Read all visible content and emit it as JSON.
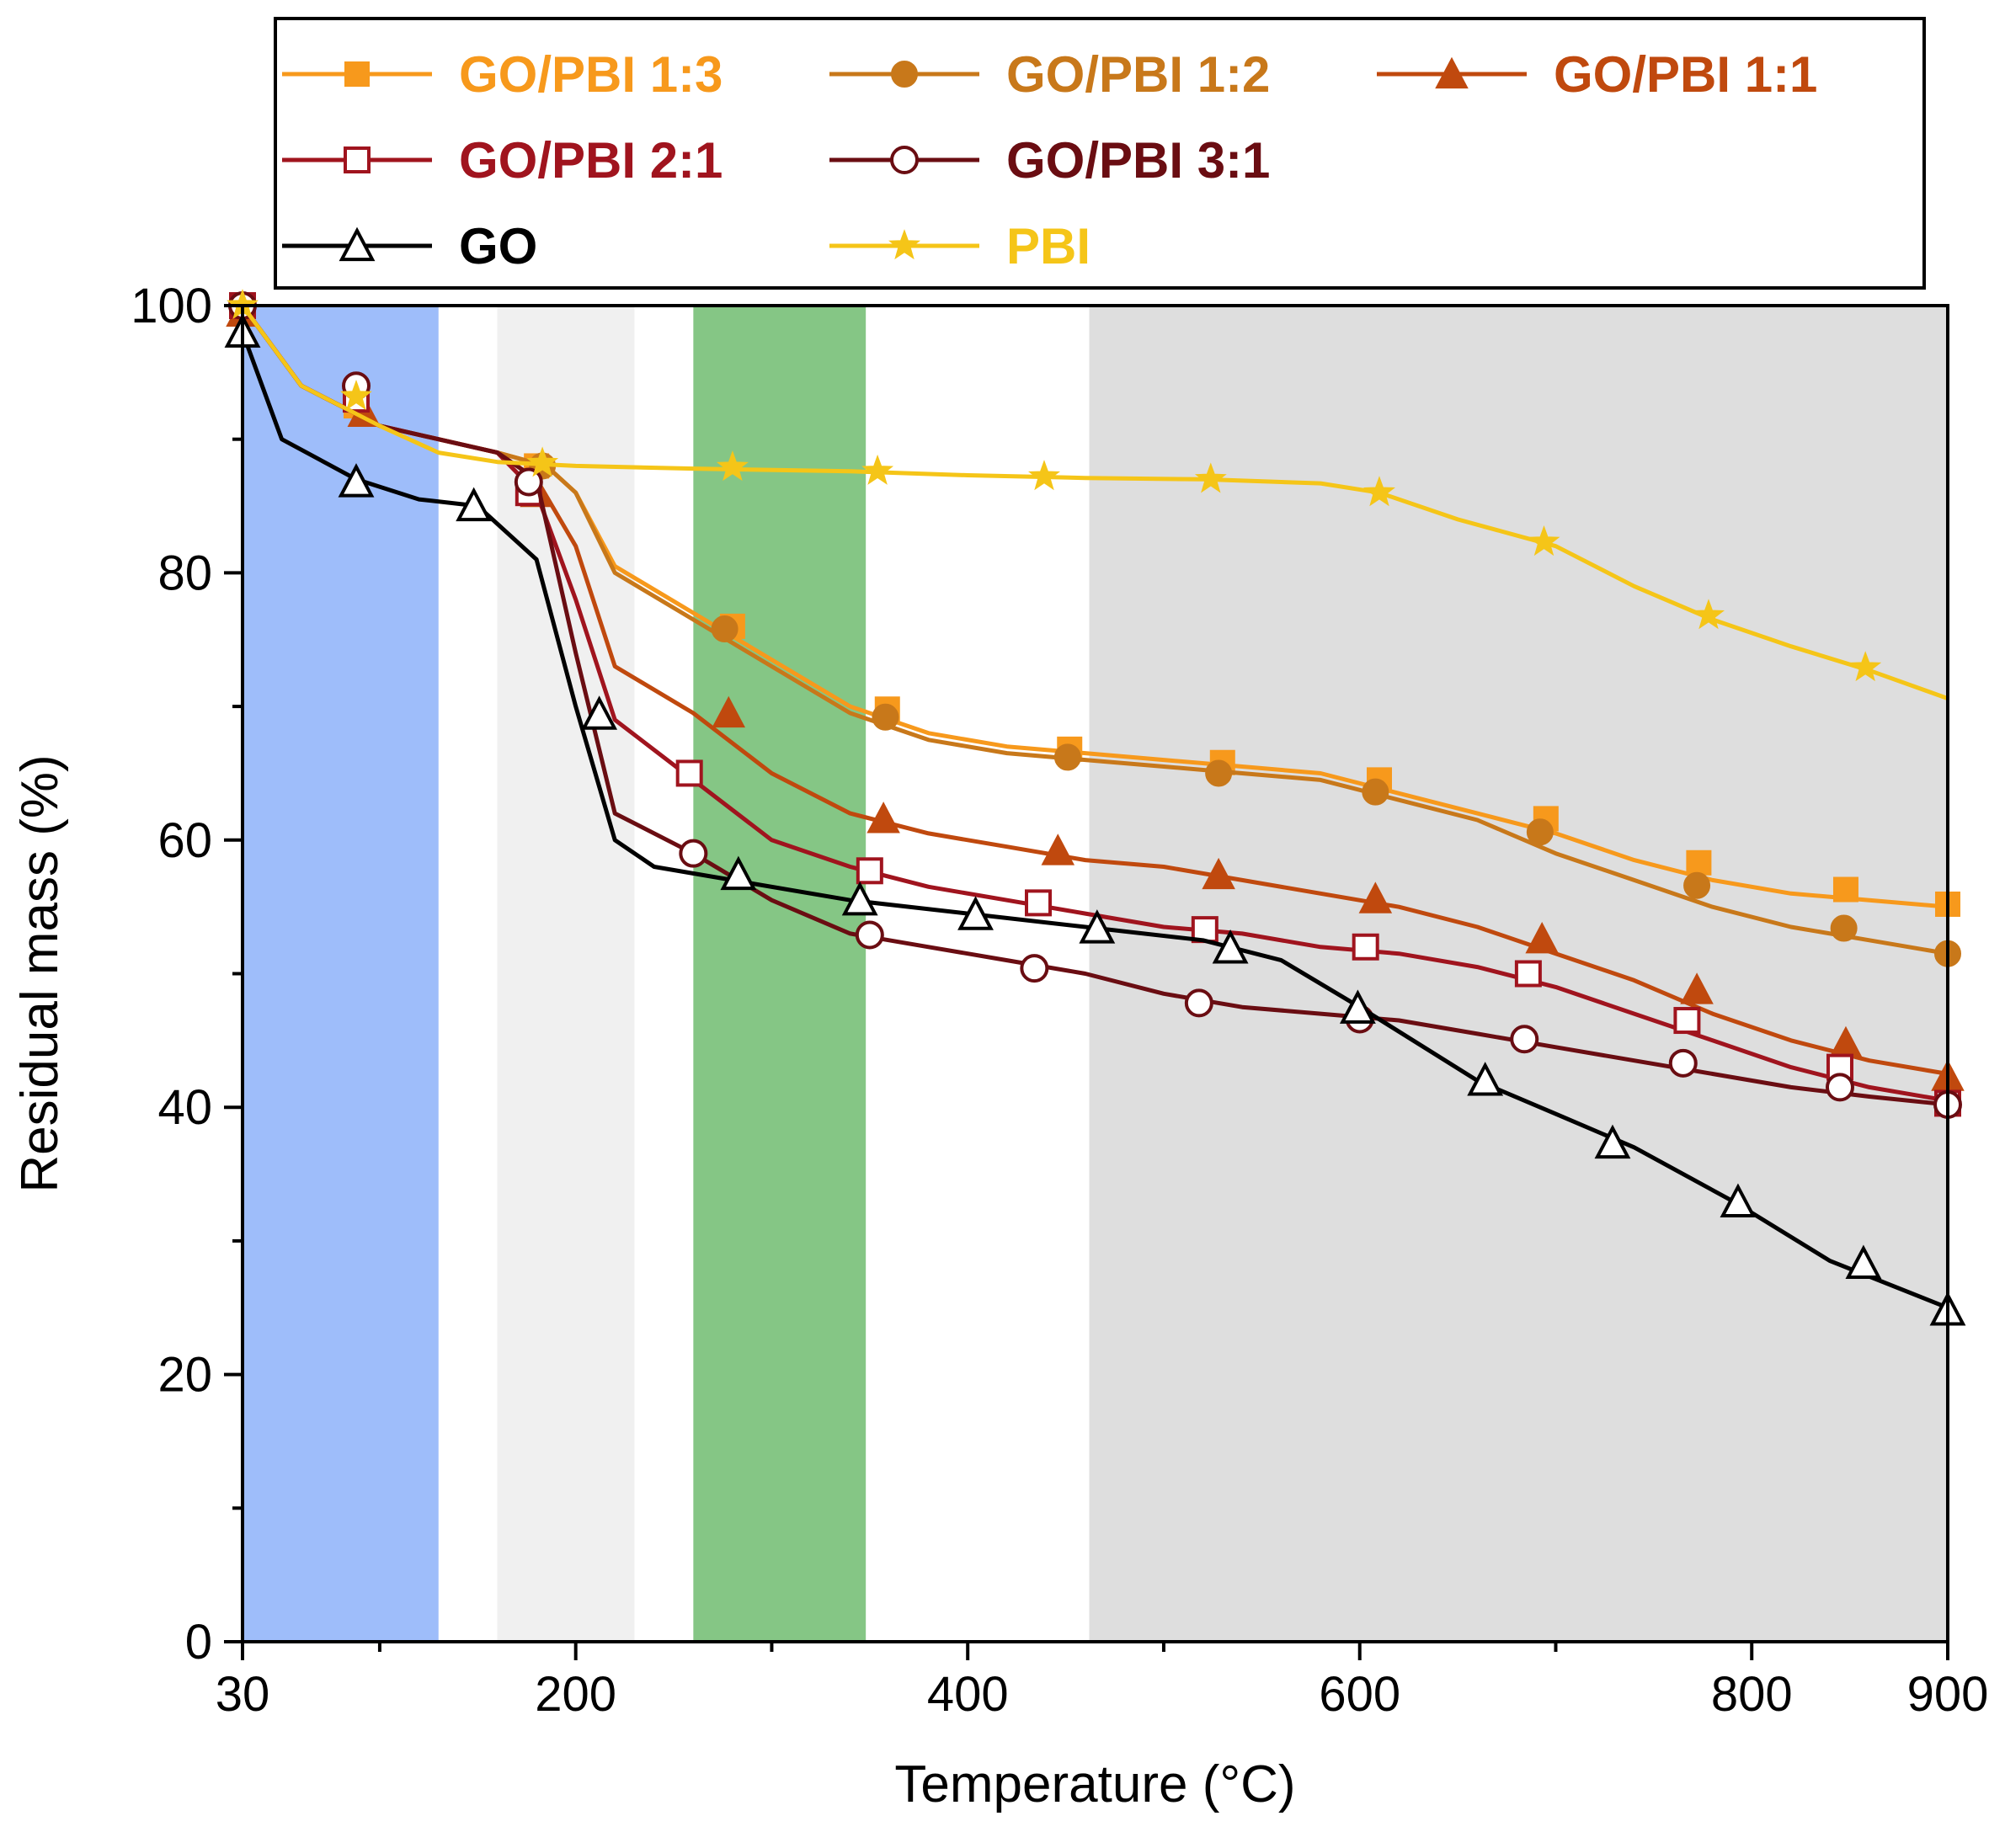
{
  "chart_data": {
    "type": "line",
    "xlabel": "Temperature (°C)",
    "ylabel": "Residual mass (%)",
    "xlim": [
      30,
      900
    ],
    "ylim": [
      0,
      100
    ],
    "x_ticks": [
      30,
      200,
      400,
      600,
      800,
      900
    ],
    "x_minor_ticks": [
      100,
      300,
      500,
      700
    ],
    "y_ticks": [
      0,
      20,
      40,
      60,
      80,
      100
    ],
    "y_minor_ticks": [
      10,
      30,
      50,
      70,
      90
    ],
    "legend_position": "top",
    "shaded_regions": [
      {
        "from": 30,
        "to": 130,
        "color": "#9ebdfa"
      },
      {
        "from": 160,
        "to": 230,
        "color": "#f0f0f0"
      },
      {
        "from": 260,
        "to": 348,
        "color": "#85c685"
      },
      {
        "from": 462,
        "to": 900,
        "color": "#dedede"
      }
    ],
    "series": [
      {
        "name": "GO/PBI 1:3",
        "color": "#f7991c",
        "marker": "square-filled",
        "x": [
          30,
          60,
          100,
          160,
          185,
          200,
          220,
          260,
          300,
          340,
          380,
          420,
          460,
          500,
          540,
          580,
          620,
          660,
          700,
          740,
          780,
          820,
          860,
          900
        ],
        "y": [
          100,
          94,
          91,
          89,
          88,
          86,
          80.5,
          77,
          73.5,
          70,
          68,
          67,
          66.5,
          66,
          65.5,
          65,
          63.5,
          62,
          60.5,
          58.5,
          57,
          56,
          55.5,
          55
        ],
        "marker_x": [
          30,
          88,
          180,
          280,
          359,
          452,
          530,
          610,
          695,
          773,
          848,
          900
        ],
        "marker_y": [
          100,
          92.5,
          88,
          76,
          69.8,
          66.8,
          65.8,
          64.5,
          61.6,
          58.3,
          56.3,
          55.2
        ]
      },
      {
        "name": "GO/PBI 1:2",
        "color": "#c8781a",
        "marker": "circle-filled",
        "x": [
          30,
          60,
          100,
          160,
          185,
          200,
          220,
          260,
          300,
          340,
          380,
          420,
          460,
          500,
          540,
          580,
          620,
          660,
          700,
          740,
          780,
          820,
          860,
          900
        ],
        "y": [
          100,
          94,
          91,
          89,
          88,
          86,
          80,
          76.5,
          73,
          69.5,
          67.5,
          66.5,
          66,
          65.5,
          65,
          64.5,
          63,
          61.5,
          59,
          57,
          55,
          53.5,
          52.5,
          51.5
        ],
        "marker_x": [
          30,
          88,
          183,
          276,
          358,
          451,
          528,
          608,
          692,
          772,
          847,
          900
        ],
        "marker_y": [
          100,
          93,
          88,
          75.8,
          69.2,
          66.2,
          65,
          63.6,
          60.6,
          56.6,
          53.4,
          51.5
        ]
      },
      {
        "name": "GO/PBI 1:1",
        "color": "#c0490e",
        "marker": "triangle-filled",
        "x": [
          30,
          60,
          100,
          160,
          180,
          200,
          220,
          260,
          300,
          340,
          380,
          420,
          460,
          500,
          540,
          580,
          620,
          660,
          700,
          740,
          780,
          820,
          860,
          900
        ],
        "y": [
          100,
          94,
          91,
          89,
          87,
          82,
          73,
          69.5,
          65,
          62,
          60.5,
          59.5,
          58.5,
          58,
          57,
          56,
          55,
          53.5,
          51.5,
          49.5,
          47,
          45,
          43.5,
          42.5
        ],
        "marker_x": [
          30,
          92,
          180,
          278,
          357,
          446,
          528,
          608,
          693,
          772,
          848,
          900
        ],
        "marker_y": [
          99.5,
          92,
          86,
          69.5,
          61.6,
          59.2,
          57.4,
          55.6,
          52.6,
          48.8,
          44.8,
          42.3
        ]
      },
      {
        "name": "GO/PBI 2:1",
        "color": "#a0141e",
        "marker": "square-open",
        "x": [
          30,
          60,
          100,
          160,
          180,
          200,
          220,
          260,
          300,
          340,
          380,
          420,
          460,
          500,
          540,
          580,
          620,
          660,
          700,
          740,
          780,
          820,
          860,
          900
        ],
        "y": [
          100,
          94,
          91,
          89,
          86,
          78,
          69,
          64.5,
          60,
          58,
          56.5,
          55.5,
          54.5,
          53.5,
          53,
          52,
          51.5,
          50.5,
          49,
          47,
          45,
          43,
          41.5,
          40.5
        ],
        "marker_x": [
          30,
          88,
          176,
          258,
          350,
          436,
          521,
          603,
          686,
          767,
          845,
          900
        ],
        "marker_y": [
          100,
          93,
          86,
          65,
          57.7,
          55.3,
          53.3,
          52,
          50,
          46.5,
          43,
          40.3
        ]
      },
      {
        "name": "GO/PBI 3:1",
        "color": "#6a0d12",
        "marker": "circle-open",
        "x": [
          30,
          60,
          100,
          160,
          180,
          200,
          220,
          260,
          300,
          340,
          380,
          420,
          460,
          500,
          540,
          580,
          620,
          660,
          700,
          740,
          780,
          820,
          860,
          900
        ],
        "y": [
          100,
          94,
          91,
          89,
          87,
          74,
          62,
          59,
          55.5,
          53,
          52,
          51,
          50,
          48.5,
          47.5,
          47,
          46.5,
          45.5,
          44.5,
          43.5,
          42.5,
          41.5,
          40.8,
          40.2
        ],
        "marker_x": [
          30,
          88,
          176,
          260,
          350,
          434,
          518,
          600,
          684,
          765,
          845,
          900
        ],
        "marker_y": [
          100,
          94,
          86.8,
          59,
          52.9,
          50.4,
          47.8,
          46.6,
          45.1,
          43.3,
          41.5,
          40.2
        ]
      },
      {
        "name": "GO",
        "color": "#000000",
        "marker": "triangle-open",
        "x": [
          30,
          50,
          88,
          120,
          150,
          180,
          200,
          220,
          240,
          280,
          340,
          400,
          460,
          520,
          560,
          600,
          660,
          700,
          740,
          790,
          840,
          900
        ],
        "y": [
          98,
          90,
          87,
          85.5,
          85,
          81,
          70,
          60,
          58,
          57,
          55.5,
          54.5,
          53.5,
          52.5,
          51,
          47.5,
          42,
          39.5,
          37,
          33,
          28.5,
          25
        ],
        "marker_x": [
          30,
          88,
          148,
          212,
          283,
          345,
          404,
          466,
          534,
          599,
          664,
          729,
          793,
          857,
          900
        ],
        "marker_y": [
          98,
          86.8,
          85,
          69.4,
          57.4,
          55.5,
          54.4,
          53.4,
          51.9,
          47.4,
          42,
          37.3,
          32.9,
          28.3,
          24.8
        ]
      },
      {
        "name": "PBI",
        "color": "#f5c518",
        "marker": "star",
        "x": [
          30,
          60,
          100,
          130,
          160,
          200,
          260,
          340,
          400,
          460,
          520,
          580,
          610,
          650,
          700,
          740,
          780,
          820,
          860,
          900
        ],
        "y": [
          100,
          94,
          91,
          89,
          88.3,
          88,
          87.8,
          87.6,
          87.3,
          87.1,
          87,
          86.7,
          86,
          84,
          82,
          79,
          76.5,
          74.5,
          72.7,
          70.6
        ],
        "marker_x": [
          30,
          88,
          183,
          280,
          354,
          439,
          524,
          610,
          694,
          778,
          858
        ],
        "marker_y": [
          100,
          93.2,
          88.2,
          87.9,
          87.6,
          87.2,
          87,
          86,
          82.3,
          76.8,
          72.9
        ]
      }
    ]
  }
}
